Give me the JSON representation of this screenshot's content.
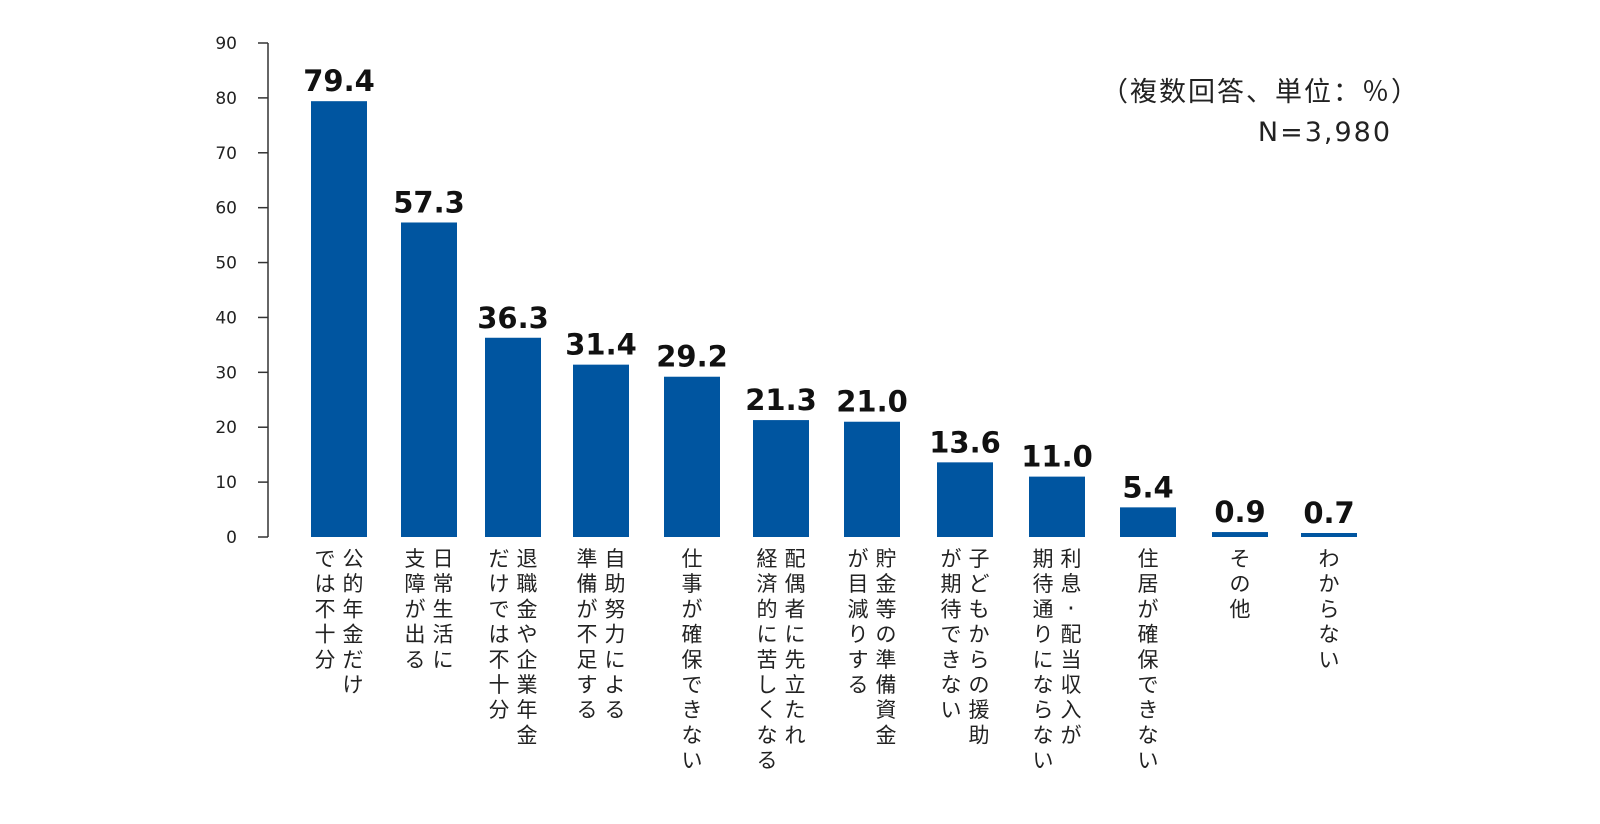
{
  "note": {
    "line1": "（複数回答、単位：％）",
    "line2": "N=3,980"
  },
  "chart_data": {
    "type": "bar",
    "title": "",
    "xlabel": "",
    "ylabel": "",
    "ylim": [
      0,
      90
    ],
    "yticks": [
      0,
      10,
      20,
      30,
      40,
      50,
      60,
      70,
      80,
      90
    ],
    "grid": false,
    "bar_color": "#0055a0",
    "categories": [
      [
        "公的年金だけ",
        "では不十分"
      ],
      [
        "日常生活に",
        "支障が出る"
      ],
      [
        "退職金や企業年金",
        "だけでは不十分"
      ],
      [
        "自助努力による",
        "準備が不足する"
      ],
      [
        "仕事が確保できない"
      ],
      [
        "配偶者に先立たれ",
        "経済的に苦しくなる"
      ],
      [
        "貯金等の準備資金",
        "が目減りする"
      ],
      [
        "子どもからの援助",
        "が期待できない"
      ],
      [
        "利息・配当収入が",
        "期待通りにならない"
      ],
      [
        "住居が確保できない"
      ],
      [
        "その他"
      ],
      [
        "わからない"
      ]
    ],
    "values": [
      79.4,
      57.3,
      36.3,
      31.4,
      29.2,
      21.3,
      21.0,
      13.6,
      11.0,
      5.4,
      0.9,
      0.7
    ],
    "value_labels": [
      "79.4",
      "57.3",
      "36.3",
      "31.4",
      "29.2",
      "21.3",
      "21.0",
      "13.6",
      "11.0",
      "5.4",
      "0.9",
      "0.7"
    ]
  }
}
